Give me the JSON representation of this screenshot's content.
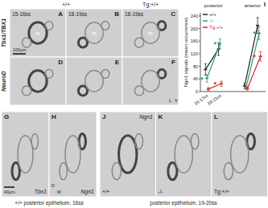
{
  "figure": {
    "header": {
      "wildtype": "+/+",
      "transgenic": "Tg;+/+"
    },
    "rows": [
      "Tbx1/TBX1",
      "NeuroD"
    ],
    "stages": [
      "15-16ss",
      "18-19ss",
      "18-19ss"
    ],
    "top_panels": [
      "A",
      "B",
      "C",
      "D",
      "E",
      "F"
    ],
    "marker_m": "m",
    "scale_top": "100μm",
    "orient_top": [
      "L",
      "V"
    ],
    "bottom_left": {
      "panels": [
        {
          "letter": "G",
          "label": "Tbx1"
        },
        {
          "letter": "H",
          "label": "Ngn1"
        }
      ],
      "scale": "40μm",
      "orient": [
        "D",
        "M"
      ],
      "caption": "+/+ posterior epithelium, 16ss"
    },
    "bottom_right": {
      "panels": [
        {
          "letter": "J",
          "genotype": "+/+"
        },
        {
          "letter": "K",
          "genotype": "-/-"
        },
        {
          "letter": "L",
          "genotype": "Tg;+/+"
        }
      ],
      "label": "Ngn1",
      "caption": "posterior epithelium, 19-20ss"
    }
  },
  "chart_data": {
    "type": "line",
    "annotations": [
      "I",
      "posterior",
      "anterior"
    ],
    "y_label": "Ngn1 signals (mean occurrence)",
    "categories": [
      "16-17ss",
      "19-21ss",
      null,
      null,
      null
    ],
    "ylim": [
      0,
      250
    ],
    "yticks": [
      0,
      40,
      80,
      120,
      160,
      200,
      240
    ],
    "legend": "top-left",
    "marker": "dash",
    "series": [
      {
        "name": "+/+",
        "color": "#222222",
        "values": [
          70,
          135,
          null,
          18,
          210
        ],
        "errors": [
          18,
          20,
          null,
          8,
          25
        ],
        "significance": [
          null,
          null,
          null,
          null,
          null
        ]
      },
      {
        "name": "-/-",
        "color": "#2a9d7a",
        "values": [
          42,
          152,
          null,
          12,
          185
        ],
        "errors": [
          12,
          15,
          null,
          6,
          20
        ],
        "significance": [
          "*",
          "*",
          null,
          null,
          "*"
        ]
      },
      {
        "name": "Tg;+/+",
        "color": "#d62728",
        "values": [
          8,
          25,
          null,
          10,
          112
        ],
        "errors": [
          5,
          8,
          null,
          5,
          15
        ],
        "significance": [
          null,
          "*",
          null,
          null,
          "*"
        ]
      }
    ]
  }
}
